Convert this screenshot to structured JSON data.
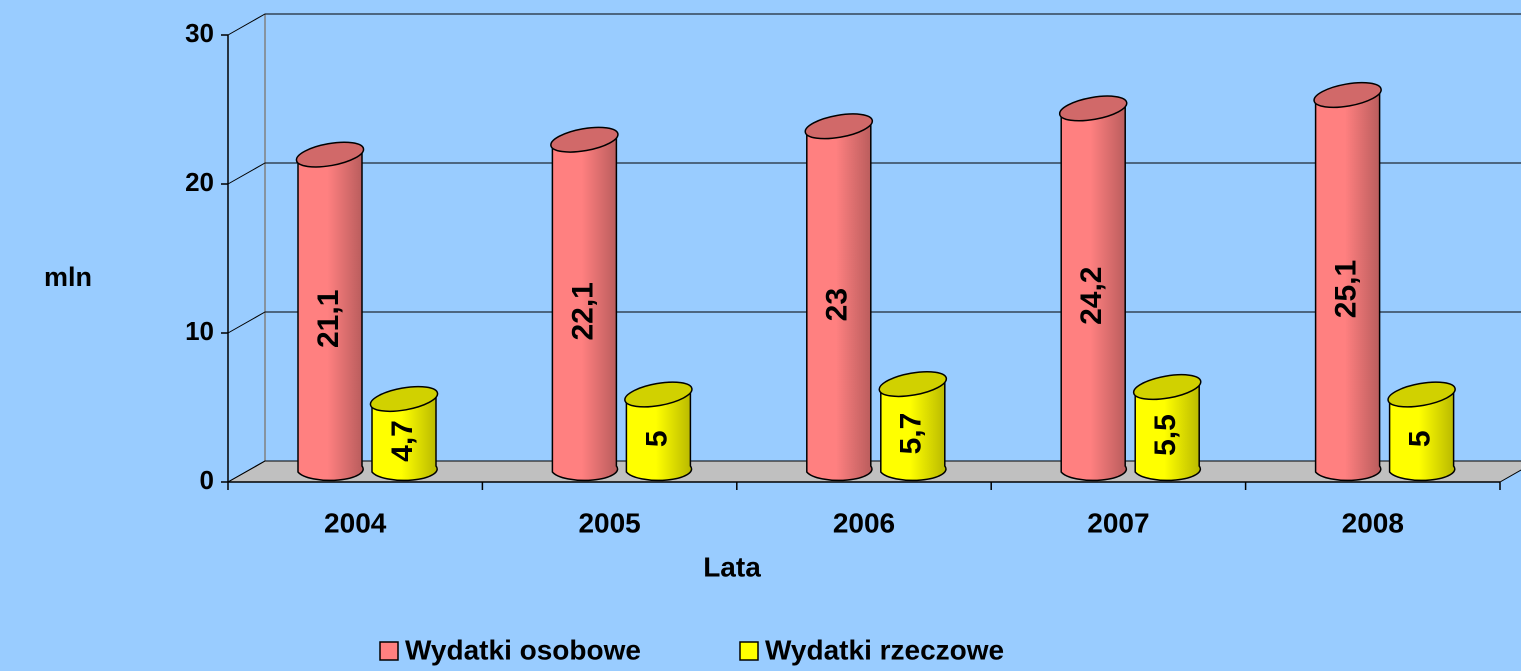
{
  "chart_data": {
    "type": "bar3d",
    "categories": [
      "2004",
      "2005",
      "2006",
      "2007",
      "2008"
    ],
    "series": [
      {
        "name": "Wydatki osobowe",
        "color": "#ff8080",
        "values": [
          21.1,
          22.1,
          23,
          24.2,
          25.1
        ],
        "value_labels": [
          "21,1",
          "22,1",
          "23",
          "24,2",
          "25,1"
        ]
      },
      {
        "name": "Wydatki rzeczowe",
        "color": "#ffff00",
        "values": [
          4.7,
          5,
          5.7,
          5.5,
          5
        ],
        "value_labels": [
          "4,7",
          "5",
          "5,7",
          "5,5",
          "5"
        ]
      }
    ],
    "ylim": [
      0,
      30
    ],
    "yticks": [
      0,
      10,
      20,
      30
    ],
    "y_label": "mln",
    "x_label": "Lata",
    "grid": true,
    "legend": "bottom"
  }
}
